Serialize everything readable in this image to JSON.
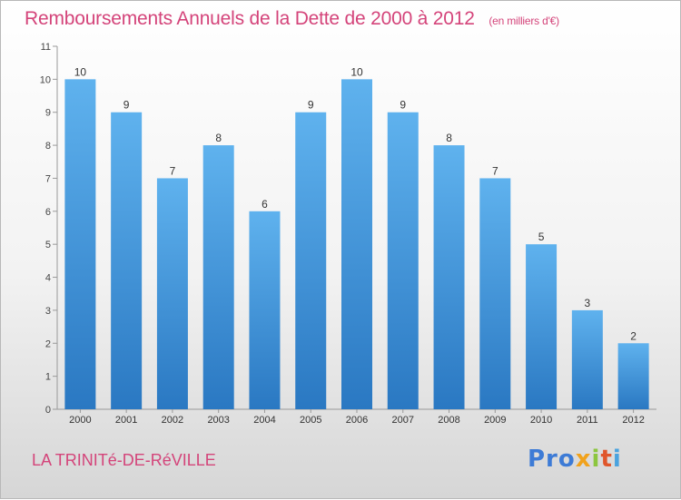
{
  "header": {
    "title": "Remboursements Annuels de la Dette de 2000 à 2012",
    "subtitle": "(en milliers d'€)"
  },
  "footer": {
    "place": "LA TRINITé-DE-RéVILLE",
    "logo": {
      "p1": "Pro",
      "p2": "x",
      "p3": "i",
      "p4": "t",
      "p5": "i"
    }
  },
  "colors": {
    "bar": "#3d8fdb",
    "title": "#d4447a"
  },
  "chart_data": {
    "type": "bar",
    "title": "Remboursements Annuels de la Dette de 2000 à 2012",
    "subtitle": "(en milliers d'€)",
    "categories": [
      "2000",
      "2001",
      "2002",
      "2003",
      "2004",
      "2005",
      "2006",
      "2007",
      "2008",
      "2009",
      "2010",
      "2011",
      "2012"
    ],
    "values": [
      10,
      9,
      7,
      8,
      6,
      9,
      10,
      9,
      8,
      7,
      5,
      3,
      2
    ],
    "yticks": [
      0,
      1,
      2,
      3,
      4,
      5,
      6,
      7,
      8,
      9,
      10,
      11
    ],
    "ylim": [
      0,
      11
    ],
    "grid": false,
    "data_labels": true
  }
}
